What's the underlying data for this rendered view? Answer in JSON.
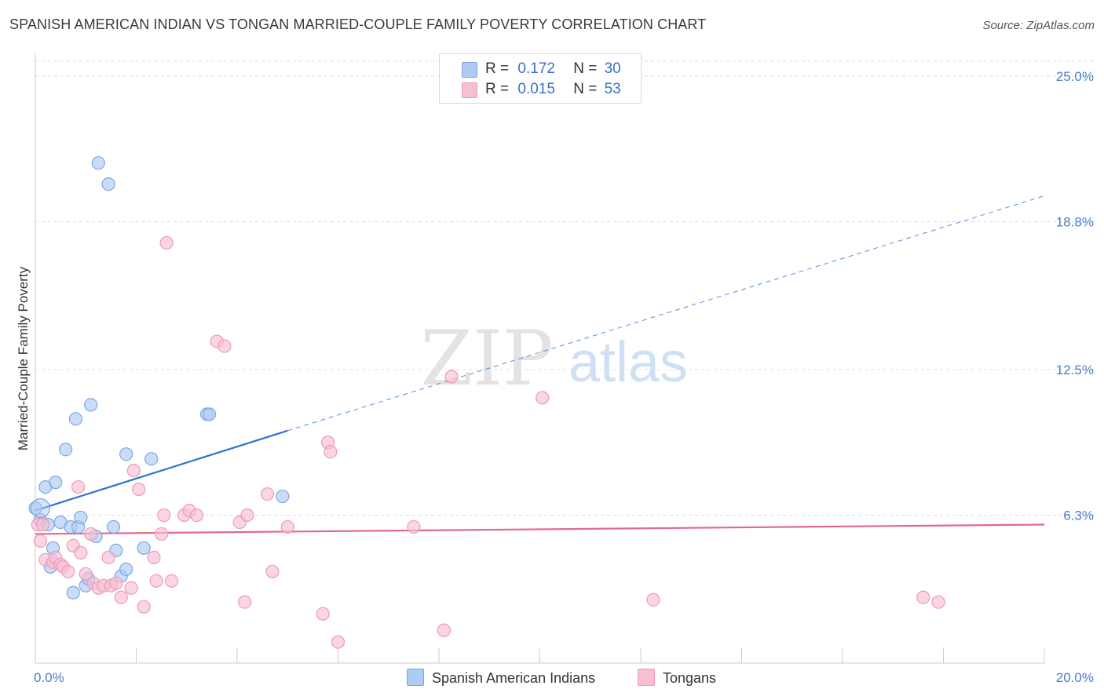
{
  "title": "SPANISH AMERICAN INDIAN VS TONGAN MARRIED-COUPLE FAMILY POVERTY CORRELATION CHART",
  "source": "Source: ZipAtlas.com",
  "watermark": {
    "zip": "ZIP",
    "atlas": "atlas"
  },
  "legend": {
    "rows": [
      {
        "r_label": "R =",
        "r_value": "0.172",
        "n_label": "N =",
        "n_value": "30",
        "color": "#aecbf5"
      },
      {
        "r_label": "R =",
        "r_value": "0.015",
        "n_label": "N =",
        "n_value": "53",
        "color": "#f8bfd2"
      }
    ]
  },
  "bottom_legend": [
    {
      "label": "Spanish American Indians",
      "color": "#aecbf5"
    },
    {
      "label": "Tongans",
      "color": "#f8bfd2"
    }
  ],
  "chart_data": {
    "type": "scatter",
    "title": "SPANISH AMERICAN INDIAN VS TONGAN MARRIED-COUPLE FAMILY POVERTY CORRELATION CHART",
    "xlabel": "",
    "ylabel": "Married-Couple Family Poverty",
    "xlim": [
      0,
      20
    ],
    "ylim": [
      0,
      25
    ],
    "x_tick_labels": [
      "0.0%",
      "20.0%"
    ],
    "y_ticks": [
      6.3,
      12.5,
      18.8,
      25.0
    ],
    "y_tick_labels": [
      "6.3%",
      "12.5%",
      "18.8%",
      "25.0%"
    ],
    "grid": true,
    "series": [
      {
        "name": "Spanish American Indians",
        "color": "#aecbf5",
        "stroke": "#7ea7e2",
        "line_color": "#2f72d4",
        "trend": {
          "x0": 0.0,
          "y0": 6.5,
          "x1": 5.0,
          "y1": 9.9,
          "x_ext": 20.0,
          "y_ext": 19.9
        },
        "points": [
          [
            0.0,
            6.6
          ],
          [
            0.1,
            6.1
          ],
          [
            0.2,
            7.5
          ],
          [
            0.25,
            5.9
          ],
          [
            0.35,
            4.9
          ],
          [
            0.3,
            4.1
          ],
          [
            0.4,
            7.7
          ],
          [
            0.5,
            6.0
          ],
          [
            0.6,
            9.1
          ],
          [
            0.7,
            5.8
          ],
          [
            0.75,
            3.0
          ],
          [
            0.8,
            10.4
          ],
          [
            0.85,
            5.8
          ],
          [
            0.9,
            6.2
          ],
          [
            1.0,
            3.3
          ],
          [
            1.05,
            3.6
          ],
          [
            1.1,
            11.0
          ],
          [
            1.2,
            5.4
          ],
          [
            1.25,
            21.3
          ],
          [
            1.45,
            20.4
          ],
          [
            1.55,
            5.8
          ],
          [
            1.6,
            4.8
          ],
          [
            1.7,
            3.7
          ],
          [
            1.8,
            4.0
          ],
          [
            1.8,
            8.9
          ],
          [
            2.15,
            4.9
          ],
          [
            2.3,
            8.7
          ],
          [
            3.4,
            10.6
          ],
          [
            3.45,
            10.6
          ],
          [
            4.9,
            7.1
          ]
        ]
      },
      {
        "name": "Tongans",
        "color": "#f8bfd2",
        "stroke": "#ef9ab8",
        "line_color": "#e4688f",
        "trend": {
          "x0": 0.0,
          "y0": 5.5,
          "x1": 20.0,
          "y1": 5.9
        },
        "points": [
          [
            0.05,
            5.9
          ],
          [
            0.1,
            5.2
          ],
          [
            0.15,
            5.9
          ],
          [
            0.2,
            4.4
          ],
          [
            0.35,
            4.3
          ],
          [
            0.4,
            4.5
          ],
          [
            0.5,
            4.2
          ],
          [
            0.55,
            4.1
          ],
          [
            0.65,
            3.9
          ],
          [
            0.75,
            5.0
          ],
          [
            0.85,
            7.5
          ],
          [
            0.9,
            4.7
          ],
          [
            1.0,
            3.8
          ],
          [
            1.1,
            5.5
          ],
          [
            1.15,
            3.4
          ],
          [
            1.25,
            3.2
          ],
          [
            1.35,
            3.3
          ],
          [
            1.45,
            4.5
          ],
          [
            1.5,
            3.3
          ],
          [
            1.6,
            3.4
          ],
          [
            1.7,
            2.8
          ],
          [
            1.9,
            3.2
          ],
          [
            1.95,
            8.2
          ],
          [
            2.05,
            7.4
          ],
          [
            2.15,
            2.4
          ],
          [
            2.35,
            4.5
          ],
          [
            2.4,
            3.5
          ],
          [
            2.5,
            5.5
          ],
          [
            2.55,
            6.3
          ],
          [
            2.6,
            17.9
          ],
          [
            2.7,
            3.5
          ],
          [
            2.95,
            6.3
          ],
          [
            3.05,
            6.5
          ],
          [
            3.2,
            6.3
          ],
          [
            3.6,
            13.7
          ],
          [
            3.75,
            13.5
          ],
          [
            4.05,
            6.0
          ],
          [
            4.15,
            2.6
          ],
          [
            4.2,
            6.3
          ],
          [
            4.6,
            7.2
          ],
          [
            4.7,
            3.9
          ],
          [
            5.0,
            5.8
          ],
          [
            5.7,
            2.1
          ],
          [
            5.8,
            9.4
          ],
          [
            5.85,
            9.0
          ],
          [
            6.0,
            0.9
          ],
          [
            7.5,
            5.8
          ],
          [
            8.1,
            1.4
          ],
          [
            8.25,
            12.2
          ],
          [
            10.05,
            11.3
          ],
          [
            12.25,
            2.7
          ],
          [
            17.6,
            2.8
          ],
          [
            17.9,
            2.6
          ]
        ]
      }
    ]
  }
}
